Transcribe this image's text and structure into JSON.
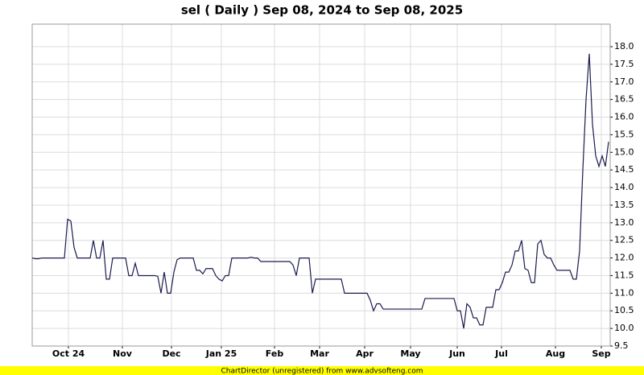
{
  "chart_data": {
    "type": "line",
    "title": "sel ( Daily ) Sep 08, 2024 to Sep 08, 2025",
    "footer": "ChartDirector (unregistered) from www.advsofteng.com",
    "series": [
      {
        "color": "#1a1a50",
        "values": [
          12.0,
          11.98,
          11.98,
          12.0,
          12.0,
          12.0,
          12.0,
          12.0,
          12.0,
          12.0,
          12.0,
          13.1,
          13.05,
          12.3,
          12.0,
          12.0,
          12.0,
          12.0,
          12.0,
          12.5,
          12.0,
          12.0,
          12.5,
          11.4,
          11.4,
          12.0,
          12.0,
          12.0,
          12.0,
          12.0,
          11.5,
          11.5,
          11.85,
          11.5,
          11.5,
          11.5,
          11.5,
          11.5,
          11.5,
          11.48,
          11.0,
          11.6,
          11.0,
          11.0,
          11.6,
          11.95,
          12.0,
          12.0,
          12.0,
          12.0,
          12.0,
          11.65,
          11.65,
          11.55,
          11.7,
          11.7,
          11.7,
          11.5,
          11.4,
          11.35,
          11.5,
          11.5,
          12.0,
          12.0,
          12.0,
          12.0,
          12.0,
          12.0,
          12.02,
          12.0,
          12.0,
          11.9,
          11.9,
          11.9,
          11.9,
          11.9,
          11.9,
          11.9,
          11.9,
          11.9,
          11.9,
          11.8,
          11.5,
          12.0,
          12.0,
          12.0,
          12.0,
          11.0,
          11.4,
          11.4,
          11.4,
          11.4,
          11.4,
          11.4,
          11.4,
          11.4,
          11.4,
          11.0,
          11.0,
          11.0,
          11.0,
          11.0,
          11.0,
          11.0,
          11.0,
          10.8,
          10.5,
          10.7,
          10.7,
          10.55,
          10.55,
          10.55,
          10.55,
          10.55,
          10.55,
          10.55,
          10.55,
          10.55,
          10.55,
          10.55,
          10.55,
          10.55,
          10.85,
          10.85,
          10.85,
          10.85,
          10.85,
          10.85,
          10.85,
          10.85,
          10.85,
          10.85,
          10.5,
          10.5,
          10.0,
          10.7,
          10.6,
          10.3,
          10.3,
          10.1,
          10.1,
          10.6,
          10.6,
          10.6,
          11.1,
          11.1,
          11.3,
          11.6,
          11.6,
          11.8,
          12.2,
          12.2,
          12.5,
          11.7,
          11.65,
          11.3,
          11.3,
          12.4,
          12.5,
          12.1,
          12.0,
          12.0,
          11.8,
          11.65,
          11.65,
          11.65,
          11.65,
          11.65,
          11.4,
          11.4,
          12.2,
          14.5,
          16.5,
          17.8,
          15.8,
          14.9,
          14.6,
          14.9,
          14.6,
          15.3
        ]
      }
    ],
    "xlim": [
      0,
      179.5
    ],
    "xticks": [
      {
        "value": 11.25,
        "label": "Oct 24"
      },
      {
        "value": 28,
        "label": "Nov"
      },
      {
        "value": 43.25,
        "label": "Dec"
      },
      {
        "value": 58.75,
        "label": "Jan 25"
      },
      {
        "value": 75.25,
        "label": "Feb"
      },
      {
        "value": 89.25,
        "label": "Mar"
      },
      {
        "value": 103.25,
        "label": "Apr"
      },
      {
        "value": 117.5,
        "label": "May"
      },
      {
        "value": 132,
        "label": "Jun"
      },
      {
        "value": 145.75,
        "label": "Jul"
      },
      {
        "value": 162.5,
        "label": "Aug"
      },
      {
        "value": 176.75,
        "label": "Sep"
      }
    ],
    "ylim": [
      9.5,
      18.64
    ],
    "yticks": [
      9.5,
      {
        "value": 10,
        "label": "10.0"
      },
      10.5,
      {
        "value": 11,
        "label": "11.0"
      },
      11.5,
      {
        "value": 12,
        "label": "12.0"
      },
      12.5,
      {
        "value": 13,
        "label": "13.0"
      },
      13.5,
      {
        "value": 14,
        "label": "14.0"
      },
      14.5,
      {
        "value": 15,
        "label": "15.0"
      },
      15.5,
      {
        "value": 16,
        "label": "16.0"
      },
      16.5,
      {
        "value": 17,
        "label": "17.0"
      },
      17.5,
      {
        "value": 18,
        "label": "18.0"
      }
    ],
    "grid": true
  }
}
